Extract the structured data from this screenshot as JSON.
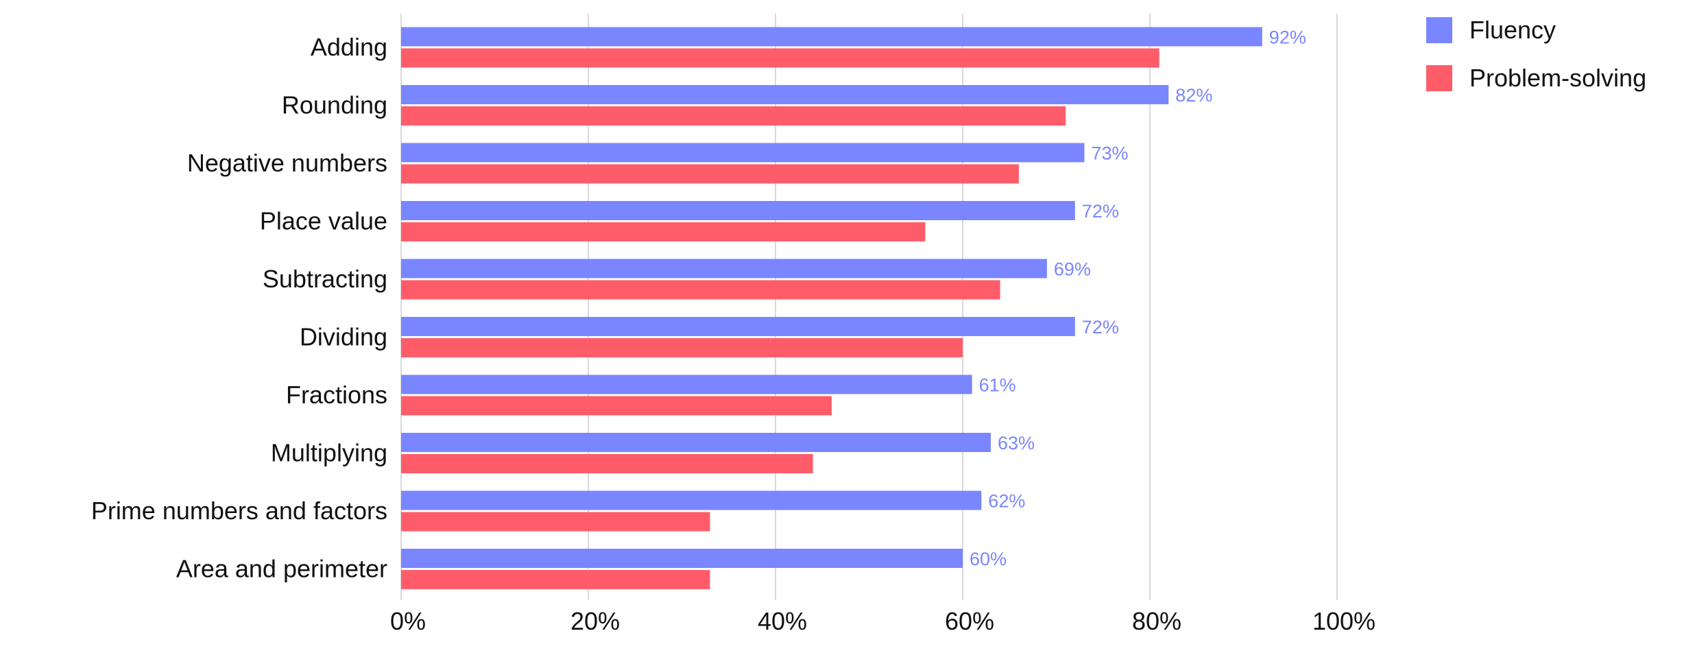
{
  "chart_data": {
    "type": "bar",
    "orientation": "horizontal",
    "categories": [
      "Adding",
      "Rounding",
      "Negative numbers",
      "Place value",
      "Subtracting",
      "Dividing",
      "Fractions",
      "Multiplying",
      "Prime numbers and factors",
      "Area and perimeter"
    ],
    "series": [
      {
        "name": "Fluency",
        "color": "#7A86FF",
        "values": [
          92,
          82,
          73,
          72,
          69,
          72,
          61,
          63,
          62,
          60
        ],
        "labels": [
          "92%",
          "82%",
          "73%",
          "72%",
          "69%",
          "72%",
          "61%",
          "63%",
          "62%",
          "60%"
        ]
      },
      {
        "name": "Problem-solving",
        "color": "#FF5C69",
        "values": [
          81,
          71,
          66,
          56,
          64,
          60,
          46,
          44,
          33,
          33
        ]
      }
    ],
    "xlim": [
      0,
      100
    ],
    "xticks": [
      0,
      20,
      40,
      60,
      80,
      100
    ],
    "xtick_labels": [
      "0%",
      "20%",
      "40%",
      "60%",
      "80%",
      "100%"
    ],
    "grid": "vertical",
    "grid_color": "#D9D9D9",
    "legend_position": "top-right",
    "title": "",
    "xlabel": "",
    "ylabel": ""
  }
}
